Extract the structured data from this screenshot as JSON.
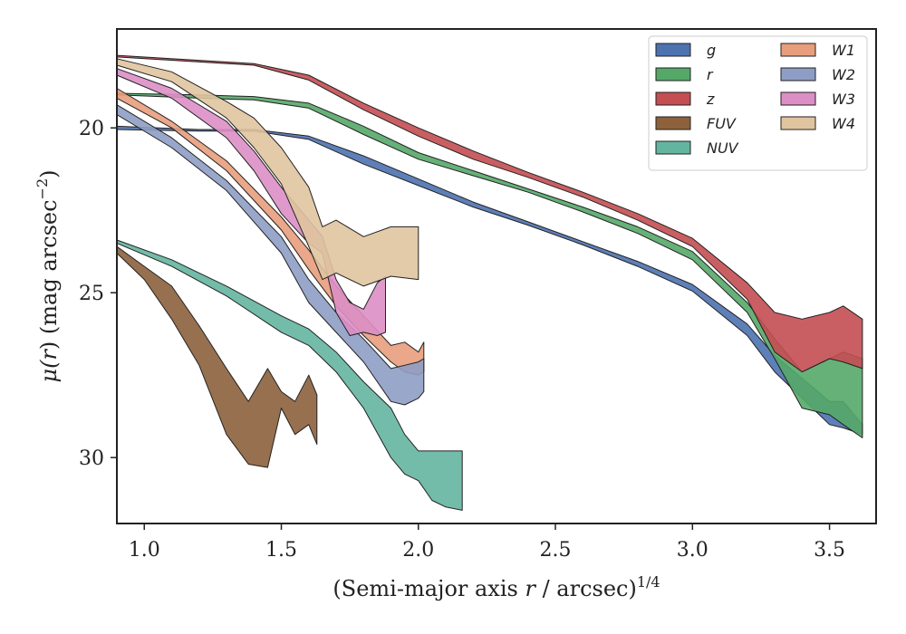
{
  "chart_data": {
    "type": "area",
    "xlabel": "(Semi-major axis r / arcsec)^1/4",
    "xlabel_parts": {
      "pre": "(Semi-major axis ",
      "var": "r",
      "mid": " / arcsec)",
      "sup": "1/4"
    },
    "ylabel": "μ(r) (mag arcsec^-2)",
    "ylabel_parts": {
      "mu": "μ(",
      "var": "r",
      "mid": ") (mag arcsec",
      "sup": "−2",
      "post": ")"
    },
    "xlim": [
      0.9,
      3.67
    ],
    "ylim": [
      32.0,
      17.0
    ],
    "y_inverted": true,
    "xticks": [
      1.0,
      1.5,
      2.0,
      2.5,
      3.0,
      3.5
    ],
    "xtick_labels": [
      "1.0",
      "1.5",
      "2.0",
      "2.5",
      "3.0",
      "3.5"
    ],
    "yticks": [
      20,
      25,
      30
    ],
    "ytick_labels": [
      "20",
      "25",
      "30"
    ],
    "grid": false,
    "legend_placement": "top-right",
    "legend_columns": 2,
    "series": [
      {
        "name": "g",
        "color": "#4c72b0",
        "x": [
          0.9,
          1.2,
          1.4,
          1.6,
          1.8,
          2.0,
          2.2,
          2.4,
          2.6,
          2.8,
          3.0,
          3.2,
          3.3,
          3.4,
          3.5,
          3.55,
          3.62
        ],
        "lo": [
          19.95,
          20.05,
          20.05,
          20.25,
          20.85,
          21.55,
          22.25,
          22.85,
          23.45,
          24.05,
          24.75,
          25.95,
          26.9,
          27.6,
          28.3,
          28.3,
          29.0
        ],
        "hi": [
          20.05,
          20.1,
          20.1,
          20.35,
          21.1,
          21.75,
          22.4,
          22.95,
          23.55,
          24.2,
          24.95,
          26.3,
          27.4,
          28.2,
          29.0,
          29.1,
          29.3
        ]
      },
      {
        "name": "r",
        "color": "#55a868",
        "x": [
          0.9,
          1.2,
          1.4,
          1.6,
          1.8,
          2.0,
          2.2,
          2.4,
          2.6,
          2.8,
          3.0,
          3.2,
          3.3,
          3.4,
          3.5,
          3.55,
          3.62
        ],
        "lo": [
          18.95,
          19.0,
          19.05,
          19.25,
          19.95,
          20.75,
          21.3,
          21.85,
          22.4,
          23.0,
          23.75,
          25.3,
          26.4,
          27.4,
          27.0,
          26.8,
          27.0
        ],
        "hi": [
          19.0,
          19.1,
          19.15,
          19.4,
          20.2,
          20.95,
          21.45,
          21.95,
          22.55,
          23.2,
          24.0,
          25.6,
          27.0,
          28.5,
          28.7,
          29.0,
          29.4
        ]
      },
      {
        "name": "z",
        "color": "#c44e52",
        "x": [
          0.9,
          1.2,
          1.4,
          1.6,
          1.8,
          2.0,
          2.2,
          2.4,
          2.6,
          2.8,
          3.0,
          3.2,
          3.3,
          3.4,
          3.5,
          3.55,
          3.62
        ],
        "lo": [
          17.8,
          17.95,
          18.05,
          18.4,
          19.25,
          20.0,
          20.7,
          21.35,
          21.95,
          22.6,
          23.35,
          24.7,
          25.6,
          25.8,
          25.6,
          25.4,
          25.8
        ],
        "hi": [
          17.85,
          18.0,
          18.1,
          18.55,
          19.45,
          20.25,
          20.95,
          21.5,
          22.1,
          22.8,
          23.6,
          25.2,
          26.8,
          27.4,
          27.0,
          27.1,
          27.3
        ]
      },
      {
        "name": "FUV",
        "color": "#8c613c",
        "x": [
          0.9,
          1.0,
          1.1,
          1.2,
          1.3,
          1.38,
          1.45,
          1.5,
          1.55,
          1.6,
          1.63
        ],
        "lo": [
          23.6,
          24.2,
          24.8,
          26.0,
          27.3,
          28.3,
          27.3,
          28.0,
          28.3,
          27.5,
          28.1
        ],
        "hi": [
          23.8,
          24.6,
          25.8,
          27.2,
          29.3,
          30.2,
          30.3,
          28.5,
          29.3,
          29.0,
          29.6
        ]
      },
      {
        "name": "NUV",
        "color": "#64b5a0",
        "x": [
          0.9,
          1.1,
          1.3,
          1.5,
          1.6,
          1.7,
          1.8,
          1.9,
          1.95,
          2.0,
          2.05,
          2.1,
          2.16
        ],
        "lo": [
          23.4,
          24.0,
          24.8,
          25.7,
          26.1,
          26.8,
          27.7,
          28.5,
          29.3,
          29.8,
          29.8,
          29.8,
          29.8
        ],
        "hi": [
          23.5,
          24.2,
          25.1,
          26.2,
          26.6,
          27.4,
          28.5,
          30.0,
          30.5,
          30.7,
          31.3,
          31.5,
          31.6
        ]
      },
      {
        "name": "W1",
        "color": "#e89d7c",
        "x": [
          0.9,
          1.1,
          1.3,
          1.5,
          1.6,
          1.7,
          1.8,
          1.9,
          1.95,
          2.0,
          2.02
        ],
        "lo": [
          18.8,
          19.8,
          21.0,
          22.7,
          23.7,
          24.8,
          25.7,
          26.6,
          26.5,
          26.8,
          26.5
        ],
        "hi": [
          19.1,
          20.0,
          21.3,
          23.1,
          24.3,
          25.4,
          26.3,
          27.1,
          27.4,
          27.5,
          27.4
        ]
      },
      {
        "name": "W2",
        "color": "#8e9dc4",
        "x": [
          0.9,
          1.1,
          1.3,
          1.5,
          1.6,
          1.7,
          1.8,
          1.9,
          1.95,
          2.0,
          2.02
        ],
        "lo": [
          19.3,
          20.3,
          21.6,
          23.3,
          24.6,
          25.6,
          26.4,
          27.3,
          27.2,
          27.1,
          27.0
        ],
        "hi": [
          19.6,
          20.6,
          21.9,
          23.8,
          25.3,
          26.2,
          27.1,
          28.3,
          28.4,
          28.2,
          28.0
        ]
      },
      {
        "name": "W3",
        "color": "#dc8fc5",
        "x": [
          0.9,
          1.1,
          1.3,
          1.4,
          1.5,
          1.6,
          1.65,
          1.7,
          1.75,
          1.8,
          1.85,
          1.88
        ],
        "lo": [
          18.2,
          18.8,
          19.8,
          20.7,
          21.8,
          22.8,
          23.3,
          24.6,
          25.3,
          25.5,
          24.7,
          24.5
        ],
        "hi": [
          18.4,
          19.1,
          20.3,
          21.3,
          22.6,
          23.5,
          23.8,
          25.6,
          26.3,
          26.2,
          26.3,
          26.2
        ]
      },
      {
        "name": "W4",
        "color": "#e0c49f",
        "x": [
          0.9,
          1.1,
          1.3,
          1.4,
          1.5,
          1.6,
          1.65,
          1.7,
          1.8,
          1.9,
          2.0
        ],
        "lo": [
          17.9,
          18.3,
          19.2,
          19.7,
          20.6,
          21.8,
          23.0,
          22.8,
          23.3,
          23.0,
          23.0
        ],
        "hi": [
          18.1,
          18.6,
          19.7,
          20.6,
          21.7,
          23.6,
          24.6,
          24.4,
          24.8,
          24.5,
          24.6
        ]
      }
    ]
  }
}
